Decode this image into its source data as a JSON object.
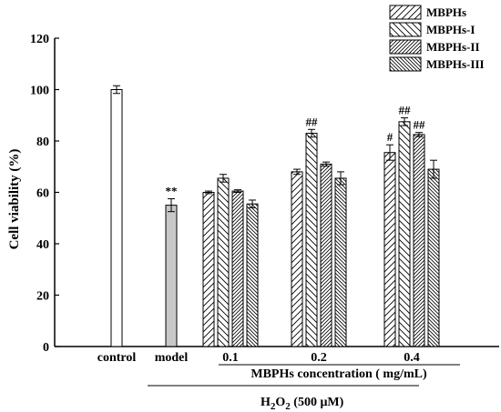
{
  "chart_data": {
    "type": "bar",
    "ylabel": "Cell viability (%)",
    "ylim": [
      0,
      120
    ],
    "yticks": [
      0,
      20,
      40,
      60,
      80,
      100,
      120
    ],
    "grid": false,
    "legend_position": "top-right",
    "legend": [
      {
        "name": "MBPHs",
        "pattern": "fwd"
      },
      {
        "name": "MBPHs-I",
        "pattern": "back"
      },
      {
        "name": "MBPHs-II",
        "pattern": "fwd-dense"
      },
      {
        "name": "MBPHs-III",
        "pattern": "back-dense"
      }
    ],
    "groups": [
      {
        "label": "control",
        "bars": [
          {
            "value": 100,
            "error": 1.5,
            "fill": "white",
            "annotation": ""
          }
        ]
      },
      {
        "label": "model",
        "bars": [
          {
            "value": 55,
            "error": 2.5,
            "fill": "gray",
            "annotation": "**"
          }
        ]
      },
      {
        "label": "0.1",
        "bars": [
          {
            "value": 60,
            "error": 0.5,
            "pattern": "fwd",
            "annotation": ""
          },
          {
            "value": 65.5,
            "error": 1.5,
            "pattern": "back",
            "annotation": ""
          },
          {
            "value": 60.5,
            "error": 0.5,
            "pattern": "fwd-dense",
            "annotation": ""
          },
          {
            "value": 55.5,
            "error": 1.5,
            "pattern": "back-dense",
            "annotation": ""
          }
        ]
      },
      {
        "label": "0.2",
        "bars": [
          {
            "value": 68,
            "error": 1.0,
            "pattern": "fwd",
            "annotation": ""
          },
          {
            "value": 83,
            "error": 1.5,
            "pattern": "back",
            "annotation": "##"
          },
          {
            "value": 71,
            "error": 0.8,
            "pattern": "fwd-dense",
            "annotation": ""
          },
          {
            "value": 65.5,
            "error": 2.5,
            "pattern": "back-dense",
            "annotation": ""
          }
        ]
      },
      {
        "label": "0.4",
        "bars": [
          {
            "value": 75.5,
            "error": 3.0,
            "pattern": "fwd",
            "annotation": "#"
          },
          {
            "value": 87.5,
            "error": 1.5,
            "pattern": "back",
            "annotation": "##"
          },
          {
            "value": 82.5,
            "error": 0.8,
            "pattern": "fwd-dense",
            "annotation": "##"
          },
          {
            "value": 69,
            "error": 3.5,
            "pattern": "back-dense",
            "annotation": ""
          }
        ]
      }
    ],
    "subtitles": {
      "concentration": "MBPHs concentration ( mg/mL)",
      "treatment_main": "H",
      "treatment_sub": "2",
      "treatment_main2": "O",
      "treatment_sub2": "2",
      "treatment_tail": " (500 μM)"
    }
  }
}
